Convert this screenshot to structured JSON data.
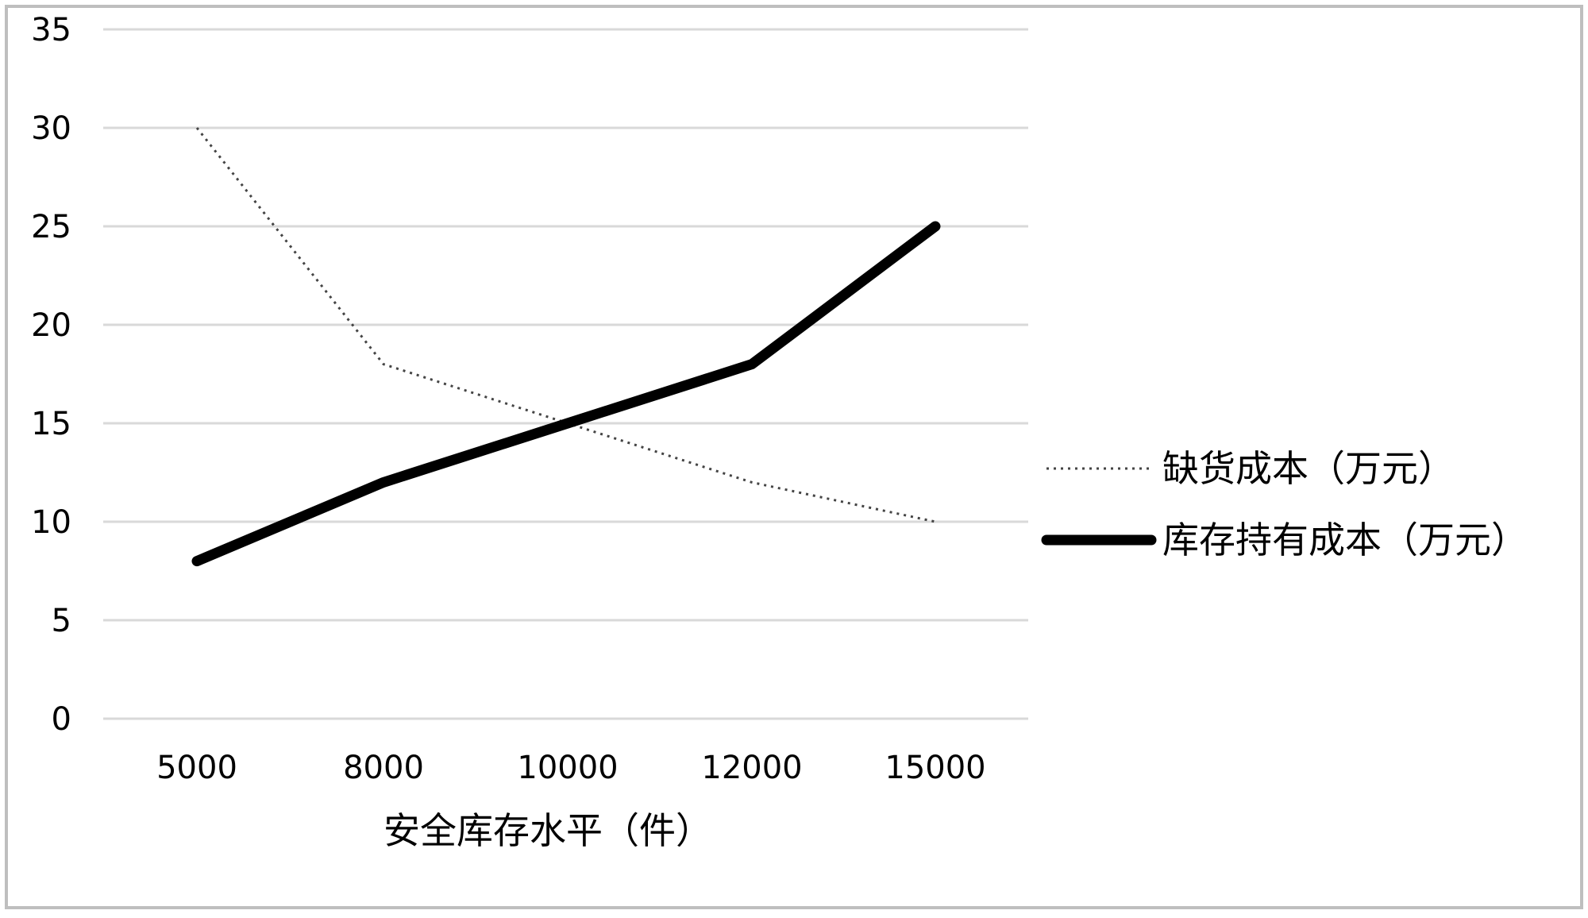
{
  "chart_data": {
    "type": "line",
    "categories": [
      "5000",
      "8000",
      "10000",
      "12000",
      "15000"
    ],
    "series": [
      {
        "name": "缺货成本（万元）",
        "values": [
          30,
          18,
          15,
          12,
          10
        ],
        "style": "dotted",
        "color": "#444444"
      },
      {
        "name": "库存持有成本（万元）",
        "values": [
          8,
          12,
          15,
          18,
          25
        ],
        "style": "solid-thick",
        "color": "#000000"
      }
    ],
    "title": "",
    "xlabel": "安全库存水平（件）",
    "ylabel": "",
    "ylim": [
      0,
      35
    ],
    "yticks": [
      "0",
      "5",
      "10",
      "15",
      "20",
      "25",
      "30",
      "35"
    ],
    "grid": true,
    "gridline_color": "#d9d9d9",
    "border_color": "#bfbfbf",
    "legend_position": "right"
  }
}
